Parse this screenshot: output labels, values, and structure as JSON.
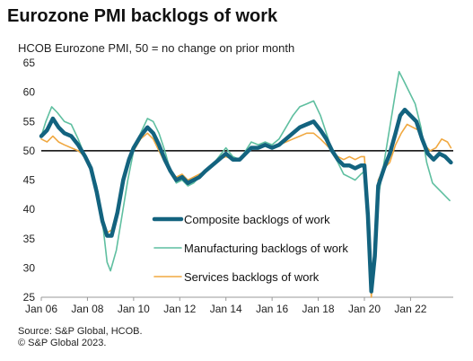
{
  "title": "Eurozone PMI backlogs of work",
  "subtitle": "HCOB Eurozone PMI, 50 = no change on prior month",
  "footer": {
    "source": "Source: S&P Global, HCOB.",
    "copyright": "© S&P Global 2023."
  },
  "chart_data": {
    "type": "line",
    "ylim": [
      25,
      65
    ],
    "yticks": [
      25,
      30,
      35,
      40,
      45,
      50,
      55,
      60,
      65
    ],
    "xlim": [
      2006.0,
      2023.85
    ],
    "xticks": [
      {
        "label": "Jan 06",
        "value": 2006.0
      },
      {
        "label": "Jan 08",
        "value": 2008.0
      },
      {
        "label": "Jan 10",
        "value": 2010.0
      },
      {
        "label": "Jan 12",
        "value": 2012.0
      },
      {
        "label": "Jan 14",
        "value": 2014.0
      },
      {
        "label": "Jan 16",
        "value": 2016.0
      },
      {
        "label": "Jan 18",
        "value": 2018.0
      },
      {
        "label": "Jan 20",
        "value": 2020.0
      },
      {
        "label": "Jan 22",
        "value": 2022.0
      }
    ],
    "reference_line": 50,
    "legend_position": "center-left, inside plot",
    "series": [
      {
        "name": "Manufacturing backlogs of work",
        "color": "#5fbfa0",
        "points": [
          [
            2006.0,
            52.5
          ],
          [
            2006.2,
            55
          ],
          [
            2006.45,
            57.5
          ],
          [
            2006.7,
            56.5
          ],
          [
            2007.0,
            55
          ],
          [
            2007.3,
            54.5
          ],
          [
            2007.6,
            52
          ],
          [
            2007.9,
            49
          ],
          [
            2008.15,
            47
          ],
          [
            2008.4,
            44
          ],
          [
            2008.65,
            38
          ],
          [
            2008.85,
            31
          ],
          [
            2009.0,
            29.5
          ],
          [
            2009.25,
            33
          ],
          [
            2009.5,
            39
          ],
          [
            2009.75,
            45
          ],
          [
            2010.0,
            50
          ],
          [
            2010.3,
            53
          ],
          [
            2010.6,
            55.5
          ],
          [
            2010.85,
            55
          ],
          [
            2011.1,
            53
          ],
          [
            2011.35,
            50
          ],
          [
            2011.6,
            46.5
          ],
          [
            2011.85,
            44.5
          ],
          [
            2012.1,
            45
          ],
          [
            2012.35,
            44
          ],
          [
            2012.6,
            44.5
          ],
          [
            2012.85,
            45.5
          ],
          [
            2013.1,
            46.5
          ],
          [
            2013.4,
            47.5
          ],
          [
            2013.7,
            49
          ],
          [
            2014.0,
            50.5
          ],
          [
            2014.3,
            49
          ],
          [
            2014.6,
            48.5
          ],
          [
            2014.85,
            50
          ],
          [
            2015.1,
            51.5
          ],
          [
            2015.4,
            51
          ],
          [
            2015.7,
            51.5
          ],
          [
            2016.0,
            51
          ],
          [
            2016.3,
            52
          ],
          [
            2016.6,
            54
          ],
          [
            2016.9,
            56
          ],
          [
            2017.2,
            57.5
          ],
          [
            2017.5,
            58
          ],
          [
            2017.8,
            58.5
          ],
          [
            2018.1,
            56
          ],
          [
            2018.35,
            53
          ],
          [
            2018.6,
            50
          ],
          [
            2018.85,
            48
          ],
          [
            2019.1,
            46
          ],
          [
            2019.35,
            45.5
          ],
          [
            2019.6,
            45
          ],
          [
            2019.85,
            46
          ],
          [
            2020.0,
            46.5
          ],
          [
            2020.15,
            38
          ],
          [
            2020.3,
            26
          ],
          [
            2020.45,
            30
          ],
          [
            2020.6,
            42
          ],
          [
            2020.85,
            48
          ],
          [
            2021.1,
            54
          ],
          [
            2021.35,
            60
          ],
          [
            2021.5,
            63.5
          ],
          [
            2021.7,
            62
          ],
          [
            2021.95,
            60
          ],
          [
            2022.2,
            58
          ],
          [
            2022.45,
            54
          ],
          [
            2022.7,
            48
          ],
          [
            2022.95,
            44.5
          ],
          [
            2023.2,
            43.5
          ],
          [
            2023.45,
            42.5
          ],
          [
            2023.7,
            41.5
          ]
        ]
      },
      {
        "name": "Services backlogs of work",
        "color": "#f0a840",
        "points": [
          [
            2006.0,
            52
          ],
          [
            2006.25,
            51.5
          ],
          [
            2006.5,
            52.5
          ],
          [
            2006.75,
            51.5
          ],
          [
            2007.0,
            51
          ],
          [
            2007.3,
            50.5
          ],
          [
            2007.6,
            50
          ],
          [
            2007.9,
            49
          ],
          [
            2008.15,
            47
          ],
          [
            2008.4,
            43
          ],
          [
            2008.65,
            38
          ],
          [
            2008.85,
            36
          ],
          [
            2009.05,
            36.5
          ],
          [
            2009.3,
            40
          ],
          [
            2009.55,
            45
          ],
          [
            2009.8,
            48
          ],
          [
            2010.0,
            50
          ],
          [
            2010.3,
            52
          ],
          [
            2010.6,
            53
          ],
          [
            2010.85,
            52
          ],
          [
            2011.1,
            50
          ],
          [
            2011.35,
            48
          ],
          [
            2011.6,
            46.5
          ],
          [
            2011.85,
            45.5
          ],
          [
            2012.1,
            46
          ],
          [
            2012.35,
            45
          ],
          [
            2012.6,
            45.5
          ],
          [
            2012.85,
            46
          ],
          [
            2013.1,
            46.5
          ],
          [
            2013.4,
            47.5
          ],
          [
            2013.7,
            48.5
          ],
          [
            2014.0,
            49
          ],
          [
            2014.3,
            48.5
          ],
          [
            2014.6,
            48.5
          ],
          [
            2014.85,
            49.5
          ],
          [
            2015.1,
            50.5
          ],
          [
            2015.4,
            50.5
          ],
          [
            2015.7,
            51
          ],
          [
            2016.0,
            50.5
          ],
          [
            2016.3,
            51
          ],
          [
            2016.6,
            51.5
          ],
          [
            2016.9,
            52
          ],
          [
            2017.2,
            52.5
          ],
          [
            2017.5,
            53
          ],
          [
            2017.8,
            53
          ],
          [
            2018.1,
            52
          ],
          [
            2018.35,
            51
          ],
          [
            2018.6,
            50
          ],
          [
            2018.85,
            49
          ],
          [
            2019.1,
            48.5
          ],
          [
            2019.35,
            49
          ],
          [
            2019.6,
            48.5
          ],
          [
            2019.85,
            49
          ],
          [
            2020.0,
            49
          ],
          [
            2020.15,
            40
          ],
          [
            2020.3,
            25
          ],
          [
            2020.45,
            33
          ],
          [
            2020.6,
            45
          ],
          [
            2020.85,
            47
          ],
          [
            2021.1,
            48
          ],
          [
            2021.35,
            51
          ],
          [
            2021.6,
            53
          ],
          [
            2021.85,
            54.5
          ],
          [
            2022.1,
            54
          ],
          [
            2022.35,
            53.5
          ],
          [
            2022.6,
            51
          ],
          [
            2022.85,
            50
          ],
          [
            2023.1,
            50.5
          ],
          [
            2023.35,
            52
          ],
          [
            2023.6,
            51.5
          ],
          [
            2023.75,
            50.5
          ]
        ]
      },
      {
        "name": "Composite backlogs of work",
        "color": "#13637f",
        "points": [
          [
            2006.0,
            52.5
          ],
          [
            2006.25,
            53.5
          ],
          [
            2006.5,
            55.5
          ],
          [
            2006.75,
            54
          ],
          [
            2007.0,
            53
          ],
          [
            2007.3,
            52.5
          ],
          [
            2007.6,
            51
          ],
          [
            2007.9,
            49
          ],
          [
            2008.15,
            47
          ],
          [
            2008.4,
            43
          ],
          [
            2008.65,
            38
          ],
          [
            2008.85,
            35.5
          ],
          [
            2009.05,
            35.5
          ],
          [
            2009.3,
            39.5
          ],
          [
            2009.55,
            45
          ],
          [
            2009.8,
            48.5
          ],
          [
            2010.0,
            50.5
          ],
          [
            2010.3,
            52.5
          ],
          [
            2010.6,
            54
          ],
          [
            2010.85,
            53
          ],
          [
            2011.1,
            51
          ],
          [
            2011.35,
            48.5
          ],
          [
            2011.6,
            46.5
          ],
          [
            2011.85,
            45
          ],
          [
            2012.1,
            45.5
          ],
          [
            2012.35,
            44.5
          ],
          [
            2012.6,
            45
          ],
          [
            2012.85,
            45.5
          ],
          [
            2013.1,
            46.5
          ],
          [
            2013.4,
            47.5
          ],
          [
            2013.7,
            48.5
          ],
          [
            2014.0,
            49.5
          ],
          [
            2014.3,
            48.5
          ],
          [
            2014.6,
            48.5
          ],
          [
            2014.85,
            49.5
          ],
          [
            2015.1,
            50.5
          ],
          [
            2015.4,
            50.5
          ],
          [
            2015.7,
            51
          ],
          [
            2016.0,
            50.5
          ],
          [
            2016.3,
            51
          ],
          [
            2016.6,
            52
          ],
          [
            2016.9,
            53
          ],
          [
            2017.2,
            54
          ],
          [
            2017.5,
            54.5
          ],
          [
            2017.8,
            55
          ],
          [
            2018.1,
            53.5
          ],
          [
            2018.35,
            52
          ],
          [
            2018.6,
            50
          ],
          [
            2018.85,
            48.5
          ],
          [
            2019.1,
            47.5
          ],
          [
            2019.35,
            47.5
          ],
          [
            2019.6,
            47
          ],
          [
            2019.85,
            47.5
          ],
          [
            2020.0,
            47.5
          ],
          [
            2020.15,
            39
          ],
          [
            2020.3,
            26
          ],
          [
            2020.45,
            32
          ],
          [
            2020.6,
            44
          ],
          [
            2020.85,
            47
          ],
          [
            2021.1,
            49.5
          ],
          [
            2021.35,
            53
          ],
          [
            2021.55,
            56
          ],
          [
            2021.75,
            57
          ],
          [
            2022.0,
            56
          ],
          [
            2022.25,
            55
          ],
          [
            2022.5,
            52
          ],
          [
            2022.75,
            49.5
          ],
          [
            2023.0,
            48.5
          ],
          [
            2023.25,
            49.5
          ],
          [
            2023.5,
            49
          ],
          [
            2023.75,
            48
          ]
        ]
      }
    ]
  }
}
